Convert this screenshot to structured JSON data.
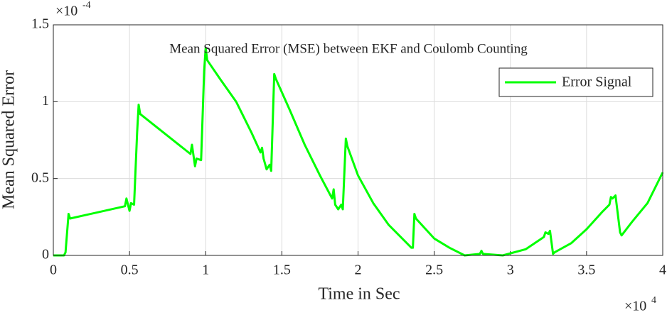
{
  "chart_data": {
    "type": "line",
    "title": "Mean Squared Error (MSE) between EKF and Coulomb Counting",
    "x_label": "Time in Sec",
    "y_label": "Mean Squared Error",
    "x_scale_base": "×10",
    "x_scale_exp": "4",
    "y_scale_base": "×10",
    "y_scale_exp": "-4",
    "x": [
      0,
      0.07,
      0.08,
      0.1,
      0.11,
      0.47,
      0.48,
      0.49,
      0.5,
      0.51,
      0.53,
      0.55,
      0.56,
      0.57,
      0.9,
      0.91,
      0.92,
      0.93,
      0.94,
      0.97,
      0.99,
      1.0,
      1.01,
      1.1,
      1.2,
      1.3,
      1.36,
      1.37,
      1.38,
      1.4,
      1.42,
      1.43,
      1.45,
      1.46,
      1.55,
      1.65,
      1.75,
      1.83,
      1.84,
      1.85,
      1.87,
      1.89,
      1.9,
      1.92,
      1.93,
      2.0,
      2.1,
      2.2,
      2.3,
      2.33,
      2.35,
      2.36,
      2.37,
      2.38,
      2.5,
      2.6,
      2.7,
      2.8,
      2.81,
      2.82,
      2.95,
      3.1,
      3.22,
      3.23,
      3.25,
      3.26,
      3.28,
      3.29,
      3.4,
      3.5,
      3.6,
      3.65,
      3.66,
      3.67,
      3.69,
      3.72,
      3.73,
      3.8,
      3.9,
      4.0
    ],
    "series": [
      {
        "name": "Error Signal",
        "color": "#00ff00",
        "values": [
          0,
          0,
          0.02,
          0.27,
          0.24,
          0.32,
          0.37,
          0.33,
          0.29,
          0.34,
          0.33,
          0.8,
          0.98,
          0.92,
          0.66,
          0.72,
          0.65,
          0.58,
          0.63,
          0.62,
          1.2,
          1.35,
          1.27,
          1.14,
          1.0,
          0.8,
          0.67,
          0.7,
          0.63,
          0.56,
          0.59,
          0.55,
          1.18,
          1.15,
          0.95,
          0.72,
          0.52,
          0.37,
          0.43,
          0.33,
          0.3,
          0.33,
          0.3,
          0.76,
          0.71,
          0.52,
          0.34,
          0.2,
          0.1,
          0.07,
          0.05,
          0.05,
          0.27,
          0.24,
          0.11,
          0.05,
          0,
          0.01,
          0.03,
          0.01,
          0,
          0.04,
          0.12,
          0.15,
          0.14,
          0.16,
          0.01,
          0.02,
          0.08,
          0.17,
          0.28,
          0.33,
          0.38,
          0.37,
          0.39,
          0.15,
          0.13,
          0.22,
          0.34,
          0.54
        ]
      }
    ],
    "xlim": [
      0,
      4
    ],
    "ylim": [
      0,
      1.5
    ],
    "xticks": [
      0,
      0.5,
      1,
      1.5,
      2,
      2.5,
      3,
      3.5,
      4
    ],
    "yticks": [
      0,
      0.5,
      1,
      1.5
    ],
    "grid": true,
    "legend": "upper right"
  }
}
